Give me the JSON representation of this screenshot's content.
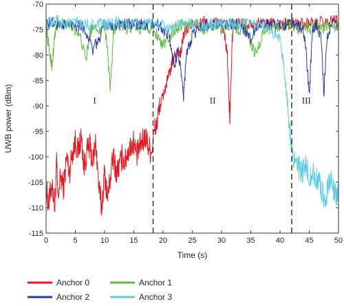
{
  "chart_data": {
    "type": "line",
    "xlabel": "Time (s)",
    "ylabel": "UWB power (dBm)",
    "xlim": [
      0,
      50
    ],
    "ylim": [
      -115,
      -70
    ],
    "x_ticks": [
      "0",
      "5",
      "10",
      "15",
      "20",
      "25",
      "30",
      "35",
      "40",
      "45",
      "50"
    ],
    "y_ticks": [
      "-70",
      "-75",
      "-80",
      "-85",
      "-90",
      "-95",
      "-100",
      "-105",
      "-110",
      "-115"
    ],
    "grid": false,
    "legend_position": "bottom",
    "region_boundaries": [
      18.3,
      42.0
    ],
    "regions": [
      {
        "label": "I",
        "x": 8.3,
        "y": -89.5
      },
      {
        "label": "II",
        "x": 28.5,
        "y": -89.5
      },
      {
        "label": "III",
        "x": 44.5,
        "y": -89.5
      }
    ],
    "series": [
      {
        "name": "Anchor 0",
        "color": "#e8131b",
        "points": [
          [
            0,
            -107
          ],
          [
            0.5,
            -109
          ],
          [
            1,
            -105
          ],
          [
            1.5,
            -110
          ],
          [
            1.8,
            -101
          ],
          [
            2,
            -108
          ],
          [
            2.5,
            -104
          ],
          [
            3,
            -106
          ],
          [
            3.5,
            -100
          ],
          [
            4,
            -103
          ],
          [
            4.5,
            -99
          ],
          [
            5,
            -97
          ],
          [
            5.5,
            -99
          ],
          [
            6,
            -96
          ],
          [
            6.5,
            -102
          ],
          [
            7,
            -99
          ],
          [
            7.5,
            -98
          ],
          [
            8,
            -101
          ],
          [
            8.5,
            -97
          ],
          [
            9,
            -106
          ],
          [
            9.5,
            -110
          ],
          [
            10,
            -103
          ],
          [
            10.5,
            -108
          ],
          [
            11,
            -104
          ],
          [
            11.5,
            -100
          ],
          [
            12,
            -103
          ],
          [
            12.5,
            -102
          ],
          [
            13,
            -100
          ],
          [
            13.5,
            -101
          ],
          [
            14,
            -99
          ],
          [
            14.5,
            -98
          ],
          [
            15,
            -97
          ],
          [
            15.5,
            -100
          ],
          [
            16,
            -98
          ],
          [
            16.5,
            -97
          ],
          [
            17,
            -96
          ],
          [
            17.5,
            -98
          ],
          [
            18,
            -99
          ],
          [
            18.5,
            -95
          ],
          [
            19,
            -93
          ],
          [
            19.5,
            -90
          ],
          [
            20,
            -88
          ],
          [
            20.5,
            -86
          ],
          [
            21,
            -84
          ],
          [
            21.5,
            -82
          ],
          [
            22,
            -80
          ],
          [
            22.5,
            -79
          ],
          [
            23,
            -80
          ],
          [
            23.5,
            -76
          ],
          [
            24,
            -75
          ],
          [
            25,
            -74
          ],
          [
            26,
            -74
          ],
          [
            27,
            -73.5
          ],
          [
            28,
            -74
          ],
          [
            29,
            -73.5
          ],
          [
            30,
            -74
          ],
          [
            30.5,
            -76
          ],
          [
            31,
            -80
          ],
          [
            31.4,
            -93
          ],
          [
            31.8,
            -78
          ],
          [
            32,
            -74
          ],
          [
            33,
            -73.5
          ],
          [
            34,
            -74
          ],
          [
            35,
            -73.5
          ],
          [
            36,
            -74
          ],
          [
            37,
            -73.5
          ],
          [
            38,
            -74
          ],
          [
            39,
            -73.5
          ],
          [
            40,
            -74
          ],
          [
            41,
            -73.5
          ],
          [
            42,
            -74
          ],
          [
            43,
            -73.5
          ],
          [
            44,
            -74
          ],
          [
            45,
            -73.5
          ],
          [
            46,
            -74
          ],
          [
            47,
            -73.5
          ],
          [
            48,
            -74
          ],
          [
            49,
            -73
          ],
          [
            50,
            -73.5
          ]
        ]
      },
      {
        "name": "Anchor 1",
        "color": "#5db83d",
        "points": [
          [
            0,
            -74
          ],
          [
            0.5,
            -79
          ],
          [
            1,
            -82
          ],
          [
            1.5,
            -76
          ],
          [
            2,
            -74
          ],
          [
            3,
            -74
          ],
          [
            4,
            -74
          ],
          [
            5,
            -75
          ],
          [
            6,
            -77
          ],
          [
            6.8,
            -81
          ],
          [
            7.5,
            -76
          ],
          [
            8,
            -74
          ],
          [
            9,
            -75
          ],
          [
            10,
            -74
          ],
          [
            10.5,
            -79
          ],
          [
            11,
            -87
          ],
          [
            11.5,
            -76
          ],
          [
            12,
            -74
          ],
          [
            13,
            -74
          ],
          [
            14,
            -75
          ],
          [
            15,
            -74
          ],
          [
            16,
            -75
          ],
          [
            17,
            -74
          ],
          [
            18,
            -75
          ],
          [
            19,
            -76
          ],
          [
            20,
            -78
          ],
          [
            21,
            -77
          ],
          [
            22,
            -75
          ],
          [
            23,
            -74
          ],
          [
            24,
            -74
          ],
          [
            25,
            -74
          ],
          [
            26,
            -74
          ],
          [
            27,
            -75
          ],
          [
            28,
            -74
          ],
          [
            29,
            -74
          ],
          [
            30,
            -75
          ],
          [
            31,
            -74
          ],
          [
            32,
            -74
          ],
          [
            33,
            -75
          ],
          [
            34,
            -74
          ],
          [
            35,
            -78
          ],
          [
            36,
            -80
          ],
          [
            37,
            -76
          ],
          [
            38,
            -74
          ],
          [
            39,
            -75
          ],
          [
            40,
            -74
          ],
          [
            41,
            -74
          ],
          [
            42,
            -74
          ],
          [
            43,
            -75
          ],
          [
            44,
            -74
          ],
          [
            45,
            -75
          ],
          [
            46,
            -74
          ],
          [
            47,
            -75
          ],
          [
            48,
            -74
          ],
          [
            49,
            -75
          ],
          [
            50,
            -74
          ]
        ]
      },
      {
        "name": "Anchor 2",
        "color": "#2338a8",
        "points": [
          [
            0,
            -74
          ],
          [
            1,
            -73.5
          ],
          [
            2,
            -74
          ],
          [
            3,
            -74
          ],
          [
            4,
            -74
          ],
          [
            5,
            -74
          ],
          [
            6,
            -74
          ],
          [
            7,
            -76
          ],
          [
            8,
            -79
          ],
          [
            9,
            -77
          ],
          [
            10,
            -74
          ],
          [
            11,
            -74
          ],
          [
            12,
            -74
          ],
          [
            13,
            -74
          ],
          [
            14,
            -74
          ],
          [
            15,
            -74
          ],
          [
            16,
            -74
          ],
          [
            17,
            -74
          ],
          [
            18,
            -74
          ],
          [
            19,
            -74
          ],
          [
            20,
            -75
          ],
          [
            21,
            -76
          ],
          [
            21.5,
            -80
          ],
          [
            22,
            -82
          ],
          [
            22.5,
            -79
          ],
          [
            23,
            -83
          ],
          [
            23.5,
            -88
          ],
          [
            24,
            -80
          ],
          [
            24.5,
            -78
          ],
          [
            25,
            -76
          ],
          [
            26,
            -75
          ],
          [
            27,
            -74
          ],
          [
            28,
            -74
          ],
          [
            29,
            -74
          ],
          [
            30,
            -74
          ],
          [
            31,
            -74
          ],
          [
            32,
            -74
          ],
          [
            33,
            -74
          ],
          [
            34,
            -75
          ],
          [
            35,
            -77
          ],
          [
            36,
            -74
          ],
          [
            37,
            -74
          ],
          [
            38,
            -74
          ],
          [
            39,
            -74
          ],
          [
            40,
            -74
          ],
          [
            41,
            -74
          ],
          [
            42,
            -74
          ],
          [
            43,
            -74
          ],
          [
            44,
            -75
          ],
          [
            44.5,
            -80
          ],
          [
            45,
            -88
          ],
          [
            45.5,
            -76
          ],
          [
            46,
            -74
          ],
          [
            47,
            -76
          ],
          [
            47.5,
            -88
          ],
          [
            48,
            -77
          ],
          [
            49,
            -74
          ],
          [
            50,
            -74
          ]
        ]
      },
      {
        "name": "Anchor 3",
        "color": "#5fcde0",
        "points": [
          [
            0,
            -74
          ],
          [
            1,
            -74
          ],
          [
            2,
            -73
          ],
          [
            3,
            -74
          ],
          [
            4,
            -74
          ],
          [
            5,
            -73.5
          ],
          [
            6,
            -74
          ],
          [
            7,
            -74
          ],
          [
            8,
            -74
          ],
          [
            9,
            -74
          ],
          [
            10,
            -74
          ],
          [
            11,
            -74
          ],
          [
            12,
            -73.5
          ],
          [
            13,
            -74
          ],
          [
            14,
            -74
          ],
          [
            15,
            -74
          ],
          [
            16,
            -74
          ],
          [
            17,
            -74
          ],
          [
            18,
            -74
          ],
          [
            19,
            -74
          ],
          [
            20,
            -74
          ],
          [
            21,
            -75
          ],
          [
            22,
            -74
          ],
          [
            23,
            -74
          ],
          [
            24,
            -74
          ],
          [
            25,
            -74
          ],
          [
            26,
            -74
          ],
          [
            27,
            -75
          ],
          [
            28,
            -74
          ],
          [
            29,
            -74
          ],
          [
            30,
            -74
          ],
          [
            31,
            -74
          ],
          [
            32,
            -74
          ],
          [
            33,
            -74
          ],
          [
            34,
            -74
          ],
          [
            35,
            -74
          ],
          [
            36,
            -74
          ],
          [
            37,
            -74
          ],
          [
            38,
            -75
          ],
          [
            39,
            -76
          ],
          [
            40,
            -77
          ],
          [
            40.5,
            -81
          ],
          [
            41,
            -86
          ],
          [
            41.5,
            -92
          ],
          [
            42,
            -98
          ],
          [
            42.5,
            -101
          ],
          [
            43,
            -102
          ],
          [
            43.5,
            -103
          ],
          [
            44,
            -103
          ],
          [
            44.5,
            -102
          ],
          [
            45,
            -104
          ],
          [
            45.5,
            -103
          ],
          [
            46,
            -104
          ],
          [
            46.5,
            -105
          ],
          [
            47,
            -106
          ],
          [
            47.5,
            -108
          ],
          [
            48,
            -107
          ],
          [
            48.5,
            -104
          ],
          [
            49,
            -106
          ],
          [
            49.5,
            -108
          ],
          [
            50,
            -106
          ]
        ]
      }
    ]
  }
}
